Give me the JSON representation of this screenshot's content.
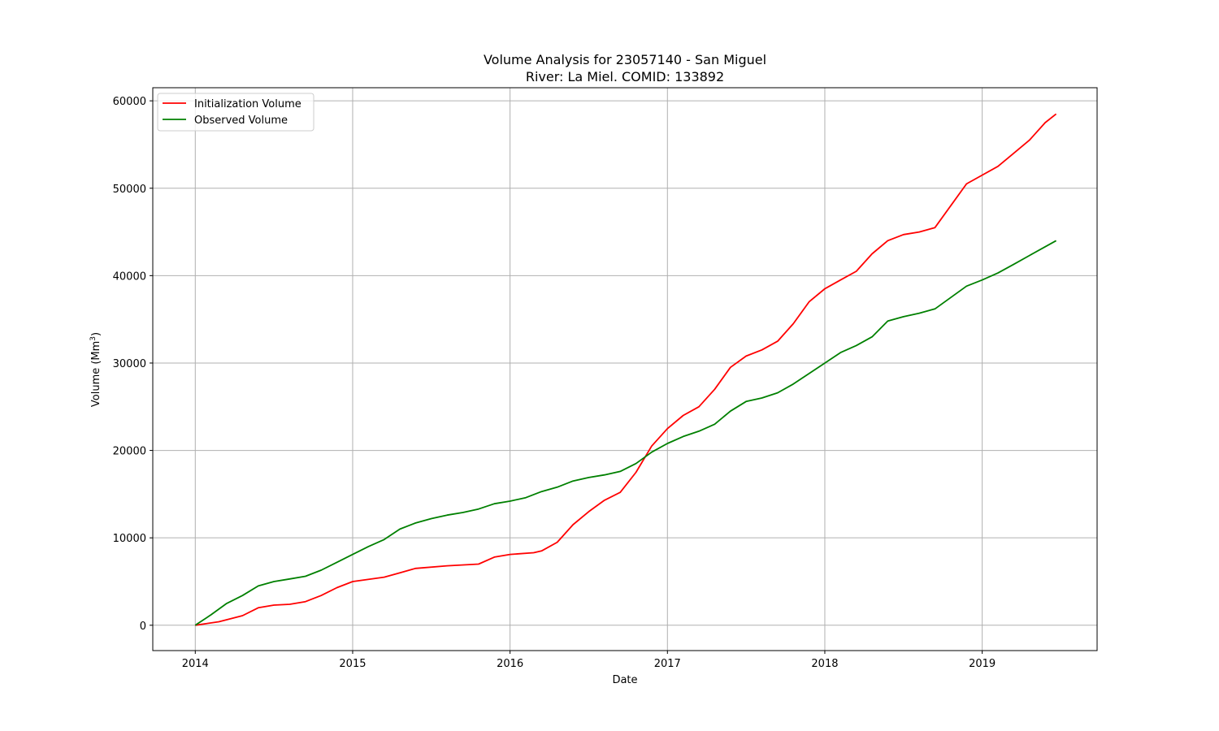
{
  "chart_data": {
    "type": "line",
    "title_line1": "Volume Analysis for 23057140 - San Miguel",
    "title_line2": "River: La Miel. COMID: 133892",
    "xlabel": "Date",
    "ylabel_text": "Volume (Mm",
    "ylabel_sup": "3",
    "ylabel_close": ")",
    "xlim": [
      2013.73,
      2019.73
    ],
    "ylim": [
      -2900,
      61500
    ],
    "x_ticks": [
      2014,
      2015,
      2016,
      2017,
      2018,
      2019
    ],
    "x_tick_labels": [
      "2014",
      "2015",
      "2016",
      "2017",
      "2018",
      "2019"
    ],
    "y_ticks": [
      0,
      10000,
      20000,
      30000,
      40000,
      50000,
      60000
    ],
    "y_tick_labels": [
      "0",
      "10000",
      "20000",
      "30000",
      "40000",
      "50000",
      "60000"
    ],
    "grid": true,
    "legend_position": "top-left",
    "series": [
      {
        "name": "Initialization Volume",
        "color": "#ff0000",
        "x": [
          2014.0,
          2014.15,
          2014.3,
          2014.4,
          2014.5,
          2014.6,
          2014.7,
          2014.8,
          2014.9,
          2015.0,
          2015.2,
          2015.3,
          2015.4,
          2015.6,
          2015.8,
          2015.9,
          2016.0,
          2016.15,
          2016.2,
          2016.3,
          2016.4,
          2016.5,
          2016.6,
          2016.7,
          2016.8,
          2016.9,
          2017.0,
          2017.1,
          2017.2,
          2017.3,
          2017.4,
          2017.5,
          2017.6,
          2017.7,
          2017.8,
          2017.9,
          2018.0,
          2018.1,
          2018.2,
          2018.3,
          2018.4,
          2018.5,
          2018.6,
          2018.7,
          2018.8,
          2018.9,
          2019.0,
          2019.1,
          2019.2,
          2019.3,
          2019.4,
          2019.47
        ],
        "y": [
          0,
          400,
          1100,
          2000,
          2300,
          2400,
          2700,
          3400,
          4300,
          5000,
          5500,
          6000,
          6500,
          6800,
          7000,
          7800,
          8100,
          8300,
          8500,
          9500,
          11500,
          13000,
          14300,
          15200,
          17500,
          20500,
          22500,
          24000,
          25000,
          27000,
          29500,
          30800,
          31500,
          32500,
          34500,
          37000,
          38500,
          39500,
          40500,
          42500,
          44000,
          44700,
          45000,
          45500,
          48000,
          50500,
          51500,
          52500,
          54000,
          55500,
          57500,
          58500
        ]
      },
      {
        "name": "Observed Volume",
        "color": "#008000",
        "x": [
          2014.0,
          2014.1,
          2014.2,
          2014.3,
          2014.4,
          2014.5,
          2014.6,
          2014.7,
          2014.8,
          2014.9,
          2015.0,
          2015.1,
          2015.2,
          2015.3,
          2015.4,
          2015.5,
          2015.6,
          2015.7,
          2015.8,
          2015.9,
          2016.0,
          2016.1,
          2016.2,
          2016.3,
          2016.4,
          2016.5,
          2016.6,
          2016.7,
          2016.8,
          2016.9,
          2017.0,
          2017.1,
          2017.2,
          2017.3,
          2017.4,
          2017.5,
          2017.6,
          2017.7,
          2017.8,
          2017.9,
          2018.0,
          2018.1,
          2018.2,
          2018.3,
          2018.4,
          2018.5,
          2018.6,
          2018.7,
          2018.8,
          2018.9,
          2019.0,
          2019.1,
          2019.2,
          2019.3,
          2019.4,
          2019.47
        ],
        "y": [
          0,
          1200,
          2500,
          3400,
          4500,
          5000,
          5300,
          5600,
          6300,
          7200,
          8100,
          9000,
          9800,
          11000,
          11700,
          12200,
          12600,
          12900,
          13300,
          13900,
          14200,
          14600,
          15300,
          15800,
          16500,
          16900,
          17200,
          17600,
          18500,
          19800,
          20800,
          21600,
          22200,
          23000,
          24500,
          25600,
          26000,
          26600,
          27600,
          28800,
          30000,
          31200,
          32000,
          33000,
          34800,
          35300,
          35700,
          36200,
          37500,
          38800,
          39500,
          40300,
          41300,
          42300,
          43300,
          44000
        ]
      }
    ]
  }
}
